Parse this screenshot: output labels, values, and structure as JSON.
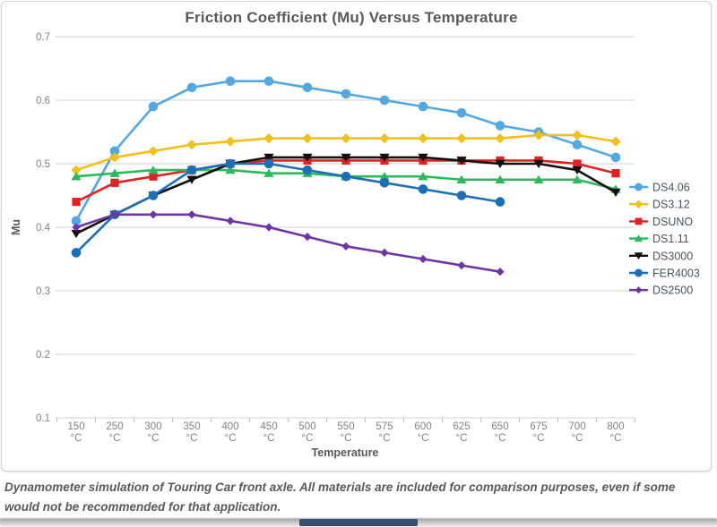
{
  "chart_data": {
    "type": "line",
    "title": "Friction Coefficient (Mu) Versus Temperature",
    "xlabel": "Temperature",
    "ylabel": "Mu",
    "x_unit": "°C",
    "categories": [
      "150",
      "250",
      "300",
      "350",
      "400",
      "450",
      "500",
      "550",
      "575",
      "600",
      "625",
      "650",
      "675",
      "700",
      "800"
    ],
    "y_ticks": [
      0.1,
      0.2,
      0.3,
      0.4,
      0.5,
      0.6,
      0.7
    ],
    "ylim": [
      0.1,
      0.7
    ],
    "grid": "horizontal",
    "legend_position": "right",
    "series": [
      {
        "name": "DS4.06",
        "color": "#53a8e2",
        "marker": "circle",
        "values": [
          0.41,
          0.52,
          0.59,
          0.62,
          0.63,
          0.63,
          0.62,
          0.61,
          0.6,
          0.59,
          0.58,
          0.56,
          0.55,
          0.53,
          0.51
        ]
      },
      {
        "name": "DS3.12",
        "color": "#f0c01e",
        "marker": "diamond",
        "values": [
          0.49,
          0.51,
          0.52,
          0.53,
          0.535,
          0.54,
          0.54,
          0.54,
          0.54,
          0.54,
          0.54,
          0.54,
          0.545,
          0.545,
          0.535
        ]
      },
      {
        "name": "DSUNO",
        "color": "#e02222",
        "marker": "square",
        "values": [
          0.44,
          0.47,
          0.48,
          0.49,
          0.5,
          0.505,
          0.505,
          0.505,
          0.505,
          0.505,
          0.505,
          0.505,
          0.505,
          0.5,
          0.485
        ]
      },
      {
        "name": "DS1.11",
        "color": "#2cb85c",
        "marker": "triangle-up",
        "values": [
          0.48,
          0.485,
          0.49,
          0.49,
          0.49,
          0.485,
          0.485,
          0.48,
          0.48,
          0.48,
          0.475,
          0.475,
          0.475,
          0.475,
          0.46
        ]
      },
      {
        "name": "DS3000",
        "color": "#111111",
        "marker": "triangle-down",
        "values": [
          0.39,
          0.42,
          0.45,
          0.475,
          0.5,
          0.51,
          0.51,
          0.51,
          0.51,
          0.51,
          0.505,
          0.5,
          0.5,
          0.49,
          0.455
        ]
      },
      {
        "name": "FER4003",
        "color": "#1c6fb5",
        "marker": "circle",
        "values": [
          0.36,
          0.42,
          0.45,
          0.49,
          0.5,
          0.5,
          0.49,
          0.48,
          0.47,
          0.46,
          0.45,
          0.44,
          null,
          null,
          null
        ]
      },
      {
        "name": "DS2500",
        "color": "#7035a5",
        "marker": "diamond-small",
        "values": [
          0.4,
          0.42,
          0.42,
          0.42,
          0.41,
          0.4,
          0.385,
          0.37,
          0.36,
          0.35,
          0.34,
          0.33,
          null,
          null,
          null
        ]
      }
    ]
  },
  "caption": "Dynamometer simulation of Touring Car front axle. All materials are included for comparison purposes, even if some would not be recommended for that application.",
  "colors": {
    "title": "#58595b",
    "tick_label": "#808285",
    "gridline": "#d9d9d9",
    "axis_tick": "#c0c0c0",
    "legend_text": "#46535e"
  }
}
